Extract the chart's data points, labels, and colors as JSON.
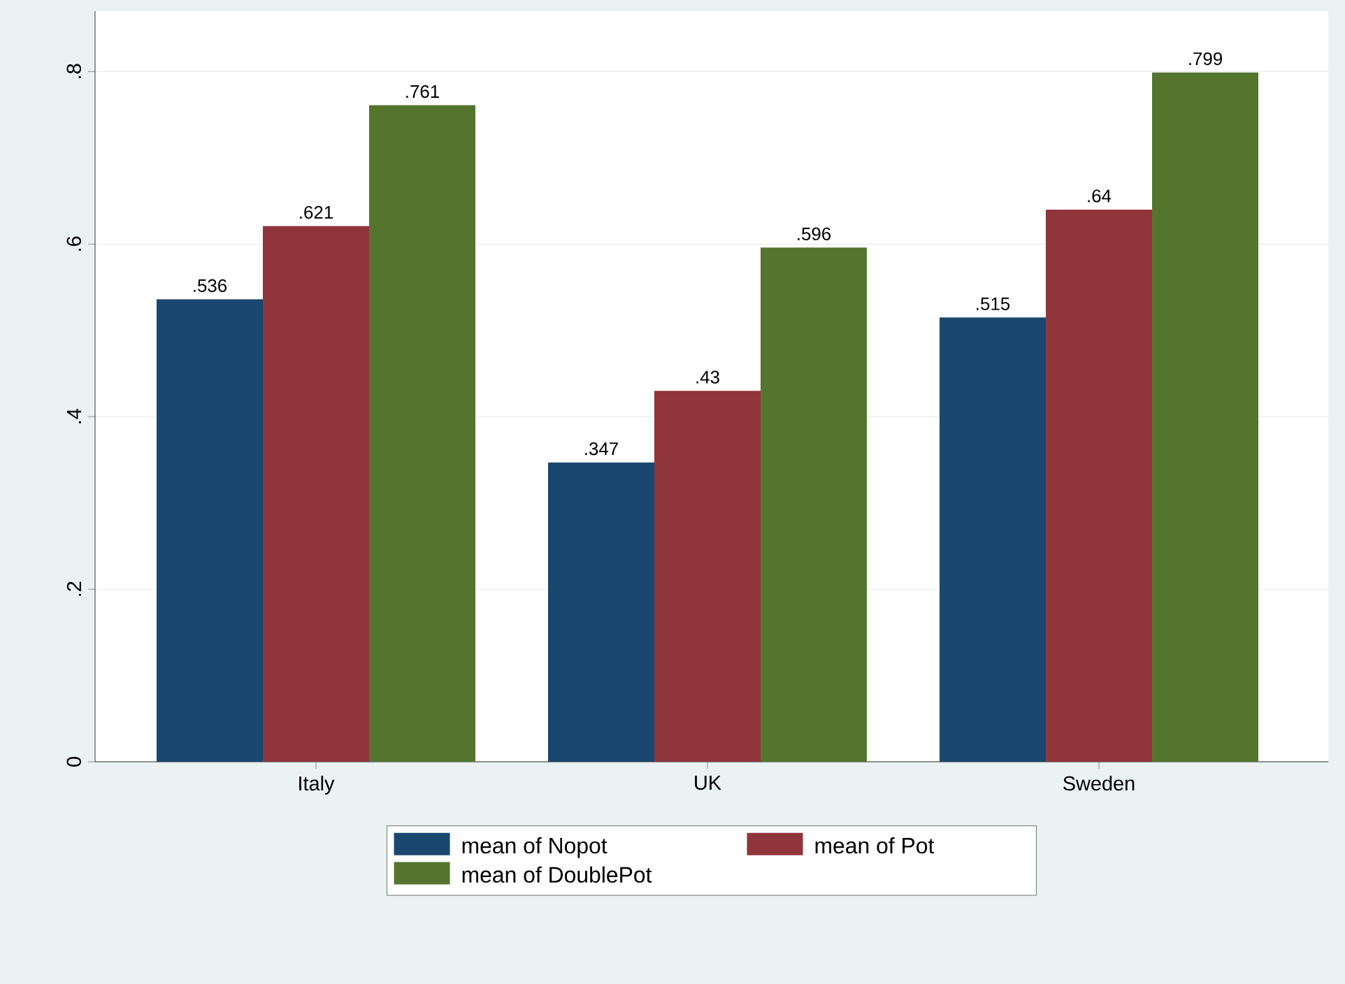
{
  "chart_data": {
    "type": "bar",
    "categories": [
      "Italy",
      "UK",
      "Sweden"
    ],
    "series": [
      {
        "name": "mean of Nopot",
        "color": "#1a476f",
        "values": [
          0.536,
          0.347,
          0.515
        ],
        "value_labels": [
          ".536",
          ".347",
          ".515"
        ]
      },
      {
        "name": "mean of Pot",
        "color": "#90353b",
        "values": [
          0.621,
          0.43,
          0.64
        ],
        "value_labels": [
          ".621",
          ".43",
          ".64"
        ]
      },
      {
        "name": "mean of DoublePot",
        "color": "#55752f",
        "values": [
          0.761,
          0.596,
          0.799
        ],
        "value_labels": [
          ".761",
          ".596",
          ".799"
        ]
      }
    ],
    "ylim": [
      0,
      0.87
    ],
    "yticks": [
      0,
      {
        "value": 0.2,
        "label": ".2"
      },
      {
        "value": 0.4,
        "label": ".4"
      },
      {
        "value": 0.6,
        "label": ".6"
      },
      {
        "value": 0.8,
        "label": ".8"
      }
    ],
    "grid": "y",
    "legend": "bottom"
  }
}
